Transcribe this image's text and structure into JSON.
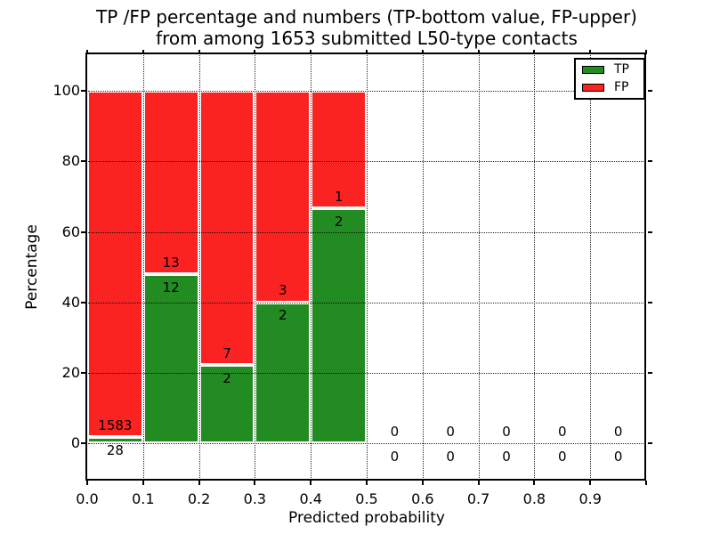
{
  "title": {
    "line1": "TP /FP percentage and numbers (TP-bottom value, FP-upper)",
    "line2": "from among 1653 submitted L50-type contacts"
  },
  "chart_data": {
    "type": "bar",
    "stacked": true,
    "normalization": "percent of (TP+FP) within each bin",
    "xlabel": "Predicted probability",
    "ylabel": "Percentage",
    "xlim": [
      0.0,
      1.0
    ],
    "ylim": [
      -10.6,
      110.4
    ],
    "grid": "dotted black, drawn over bars",
    "xticks": {
      "values": [
        0.0,
        0.1,
        0.2,
        0.3,
        0.4,
        0.5,
        0.6,
        0.7,
        0.8,
        0.9
      ],
      "labels": [
        "0.0",
        "0.1",
        "0.2",
        "0.3",
        "0.4",
        "0.5",
        "0.6",
        "0.7",
        "0.8",
        "0.9"
      ]
    },
    "yticks": {
      "values": [
        0,
        20,
        40,
        60,
        80,
        100
      ],
      "labels": [
        "0",
        "20",
        "40",
        "60",
        "80",
        "100"
      ]
    },
    "legend": {
      "position": "upper right",
      "items": [
        {
          "label": "TP",
          "color": "#228b22"
        },
        {
          "label": "FP",
          "color": "#fb2222"
        }
      ]
    },
    "series_colors": {
      "tp": "#228b22",
      "fp": "#fb2222"
    },
    "bins": [
      {
        "range": [
          0.0,
          0.1
        ],
        "tp": 28,
        "fp": 1583
      },
      {
        "range": [
          0.1,
          0.2
        ],
        "tp": 12,
        "fp": 13
      },
      {
        "range": [
          0.2,
          0.3
        ],
        "tp": 2,
        "fp": 7
      },
      {
        "range": [
          0.3,
          0.4
        ],
        "tp": 2,
        "fp": 3
      },
      {
        "range": [
          0.4,
          0.5
        ],
        "tp": 2,
        "fp": 1
      },
      {
        "range": [
          0.5,
          0.6
        ],
        "tp": 0,
        "fp": 0
      },
      {
        "range": [
          0.6,
          0.7
        ],
        "tp": 0,
        "fp": 0
      },
      {
        "range": [
          0.7,
          0.8
        ],
        "tp": 0,
        "fp": 0
      },
      {
        "range": [
          0.8,
          0.9
        ],
        "tp": 0,
        "fp": 0
      },
      {
        "range": [
          0.9,
          1.0
        ],
        "tp": 0,
        "fp": 0
      }
    ]
  }
}
